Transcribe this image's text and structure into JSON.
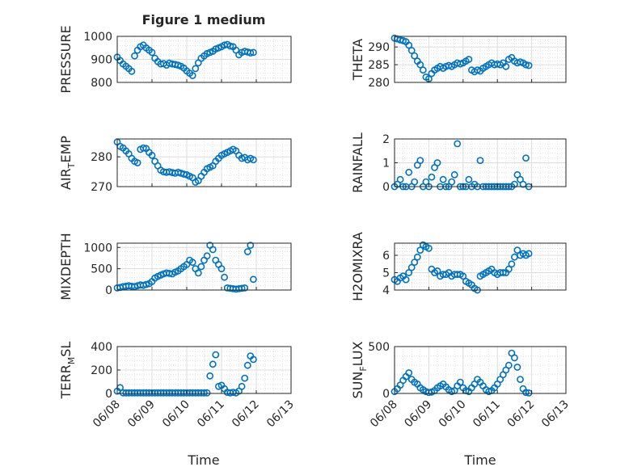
{
  "figure": {
    "title": "Figure 1 medium",
    "xlabel": "Time"
  },
  "colors": {
    "marker": "#0072BD",
    "axis": "#262626",
    "grid": "#dcdcdc"
  },
  "chart_data": [
    {
      "id": "pressure",
      "type": "scatter",
      "ylabel": {
        "main": "PRESSURE",
        "sub": ""
      },
      "ylim": [
        800,
        1000
      ],
      "yticks": [
        800,
        900,
        1000
      ],
      "yticklabels": [
        "800",
        "900",
        "1000"
      ],
      "x": [
        "06/08 00:00",
        "06/08 02:00",
        "06/08 04:00",
        "06/08 06:00",
        "06/08 08:00",
        "06/08 10:00",
        "06/08 12:00",
        "06/08 14:00",
        "06/08 16:00",
        "06/08 18:00",
        "06/08 20:00",
        "06/08 22:00",
        "06/09 00:00",
        "06/09 02:00",
        "06/09 04:00",
        "06/09 06:00",
        "06/09 08:00",
        "06/09 10:00",
        "06/09 12:00",
        "06/09 14:00",
        "06/09 16:00",
        "06/09 18:00",
        "06/09 20:00",
        "06/09 22:00",
        "06/10 00:00",
        "06/10 02:00",
        "06/10 04:00",
        "06/10 06:00",
        "06/10 08:00",
        "06/10 10:00",
        "06/10 12:00",
        "06/10 14:00",
        "06/10 16:00",
        "06/10 18:00",
        "06/10 20:00",
        "06/10 22:00",
        "06/11 00:00",
        "06/11 02:00",
        "06/11 04:00",
        "06/11 06:00",
        "06/11 08:00",
        "06/11 10:00",
        "06/11 12:00",
        "06/11 14:00",
        "06/11 16:00",
        "06/11 18:00",
        "06/11 20:00",
        "06/11 22:00"
      ],
      "y": [
        910,
        895,
        880,
        870,
        860,
        848,
        915,
        940,
        955,
        962,
        950,
        940,
        930,
        905,
        890,
        880,
        882,
        875,
        884,
        880,
        878,
        875,
        870,
        862,
        850,
        840,
        830,
        860,
        885,
        905,
        915,
        925,
        930,
        935,
        945,
        950,
        955,
        962,
        965,
        958,
        955,
        940,
        920,
        930,
        935,
        932,
        928,
        930
      ]
    },
    {
      "id": "theta",
      "type": "scatter",
      "ylabel": {
        "main": "THETA",
        "sub": ""
      },
      "ylim": [
        280,
        293
      ],
      "yticks": [
        280,
        285,
        290
      ],
      "yticklabels": [
        "280",
        "285",
        "290"
      ],
      "x": [
        "06/08 00:00",
        "06/08 02:00",
        "06/08 04:00",
        "06/08 06:00",
        "06/08 08:00",
        "06/08 10:00",
        "06/08 12:00",
        "06/08 14:00",
        "06/08 16:00",
        "06/08 18:00",
        "06/08 20:00",
        "06/08 22:00",
        "06/09 00:00",
        "06/09 02:00",
        "06/09 04:00",
        "06/09 06:00",
        "06/09 08:00",
        "06/09 10:00",
        "06/09 12:00",
        "06/09 14:00",
        "06/09 16:00",
        "06/09 18:00",
        "06/09 20:00",
        "06/09 22:00",
        "06/10 00:00",
        "06/10 02:00",
        "06/10 04:00",
        "06/10 06:00",
        "06/10 08:00",
        "06/10 10:00",
        "06/10 12:00",
        "06/10 14:00",
        "06/10 16:00",
        "06/10 18:00",
        "06/10 20:00",
        "06/10 22:00",
        "06/11 00:00",
        "06/11 02:00",
        "06/11 04:00",
        "06/11 06:00",
        "06/11 08:00",
        "06/11 10:00",
        "06/11 12:00",
        "06/11 14:00",
        "06/11 16:00",
        "06/11 18:00",
        "06/11 20:00",
        "06/11 22:00"
      ],
      "y": [
        292.5,
        292.3,
        292.0,
        291.8,
        291.5,
        290.5,
        289.0,
        287.5,
        286.0,
        285.0,
        283.5,
        281.5,
        281.0,
        282.5,
        283.5,
        284.0,
        284.5,
        284.0,
        284.5,
        284.8,
        284.5,
        285.0,
        285.5,
        285.2,
        285.5,
        286.0,
        286.5,
        283.5,
        283.0,
        283.5,
        283.2,
        284.0,
        284.5,
        285.0,
        285.5,
        285.0,
        285.2,
        285.0,
        285.5,
        284.5,
        286.5,
        287.0,
        286.0,
        285.5,
        285.8,
        285.5,
        285.0,
        284.8
      ]
    },
    {
      "id": "air_temp",
      "type": "scatter",
      "ylabel": {
        "main": "AIR",
        "sub": "T",
        "rest": "EMP"
      },
      "ylim": [
        270,
        286
      ],
      "yticks": [
        270,
        280
      ],
      "yticklabels": [
        "270",
        "280"
      ],
      "x": [
        "06/08 00:00",
        "06/08 02:00",
        "06/08 04:00",
        "06/08 06:00",
        "06/08 08:00",
        "06/08 10:00",
        "06/08 12:00",
        "06/08 14:00",
        "06/08 16:00",
        "06/08 18:00",
        "06/08 20:00",
        "06/08 22:00",
        "06/09 00:00",
        "06/09 02:00",
        "06/09 04:00",
        "06/09 06:00",
        "06/09 08:00",
        "06/09 10:00",
        "06/09 12:00",
        "06/09 14:00",
        "06/09 16:00",
        "06/09 18:00",
        "06/09 20:00",
        "06/09 22:00",
        "06/10 00:00",
        "06/10 02:00",
        "06/10 04:00",
        "06/10 06:00",
        "06/10 08:00",
        "06/10 10:00",
        "06/10 12:00",
        "06/10 14:00",
        "06/10 16:00",
        "06/10 18:00",
        "06/10 20:00",
        "06/10 22:00",
        "06/11 00:00",
        "06/11 02:00",
        "06/11 04:00",
        "06/11 06:00",
        "06/11 08:00",
        "06/11 10:00",
        "06/11 12:00",
        "06/11 14:00",
        "06/11 16:00",
        "06/11 18:00",
        "06/11 20:00",
        "06/11 22:00"
      ],
      "y": [
        285.0,
        283.5,
        283.0,
        282.0,
        281.0,
        279.5,
        278.5,
        278.0,
        282.5,
        283.0,
        282.8,
        281.5,
        280.5,
        278.5,
        277.0,
        275.5,
        275.0,
        274.8,
        275.0,
        274.7,
        274.5,
        274.8,
        274.5,
        274.2,
        274.0,
        273.5,
        273.0,
        271.5,
        272.0,
        273.5,
        274.8,
        276.0,
        276.5,
        277.0,
        278.5,
        279.5,
        280.5,
        281.0,
        281.5,
        282.0,
        282.5,
        282.0,
        280.5,
        279.5,
        279.8,
        279.0,
        279.5,
        279.0
      ]
    },
    {
      "id": "rainfall",
      "type": "scatter",
      "ylabel": {
        "main": "RAINFALL",
        "sub": ""
      },
      "ylim": [
        0,
        2
      ],
      "yticks": [
        0,
        1,
        2
      ],
      "yticklabels": [
        "0",
        "1",
        "2"
      ],
      "x": [
        "06/08 00:00",
        "06/08 02:00",
        "06/08 04:00",
        "06/08 06:00",
        "06/08 08:00",
        "06/08 10:00",
        "06/08 12:00",
        "06/08 14:00",
        "06/08 16:00",
        "06/08 18:00",
        "06/08 20:00",
        "06/08 22:00",
        "06/09 00:00",
        "06/09 02:00",
        "06/09 04:00",
        "06/09 06:00",
        "06/09 08:00",
        "06/09 10:00",
        "06/09 12:00",
        "06/09 14:00",
        "06/09 16:00",
        "06/09 18:00",
        "06/09 20:00",
        "06/09 22:00",
        "06/10 00:00",
        "06/10 02:00",
        "06/10 04:00",
        "06/10 06:00",
        "06/10 08:00",
        "06/10 10:00",
        "06/10 12:00",
        "06/10 14:00",
        "06/10 16:00",
        "06/10 18:00",
        "06/10 20:00",
        "06/10 22:00",
        "06/11 00:00",
        "06/11 02:00",
        "06/11 04:00",
        "06/11 06:00",
        "06/11 08:00",
        "06/11 10:00",
        "06/11 12:00",
        "06/11 14:00",
        "06/11 16:00",
        "06/11 18:00",
        "06/11 20:00",
        "06/11 22:00"
      ],
      "y": [
        0.0,
        0.1,
        0.3,
        0.0,
        0.0,
        0.6,
        0.0,
        0.2,
        0.9,
        1.1,
        0.0,
        0.2,
        0.0,
        0.4,
        0.8,
        1.0,
        0.0,
        0.3,
        0.0,
        0.0,
        0.2,
        0.5,
        1.8,
        0.0,
        0.0,
        0.0,
        0.3,
        0.0,
        0.1,
        0.0,
        1.1,
        0.0,
        0.0,
        0.0,
        0.0,
        0.0,
        0.0,
        0.0,
        0.0,
        0.0,
        0.0,
        0.0,
        0.1,
        0.5,
        0.3,
        0.1,
        1.2,
        0.0
      ]
    },
    {
      "id": "mixdepth",
      "type": "scatter",
      "ylabel": {
        "main": "MIXDEPTH",
        "sub": ""
      },
      "ylim": [
        0,
        1100
      ],
      "yticks": [
        0,
        500,
        1000
      ],
      "yticklabels": [
        "0",
        "500",
        "1000"
      ],
      "x": [
        "06/08 00:00",
        "06/08 02:00",
        "06/08 04:00",
        "06/08 06:00",
        "06/08 08:00",
        "06/08 10:00",
        "06/08 12:00",
        "06/08 14:00",
        "06/08 16:00",
        "06/08 18:00",
        "06/08 20:00",
        "06/08 22:00",
        "06/09 00:00",
        "06/09 02:00",
        "06/09 04:00",
        "06/09 06:00",
        "06/09 08:00",
        "06/09 10:00",
        "06/09 12:00",
        "06/09 14:00",
        "06/09 16:00",
        "06/09 18:00",
        "06/09 20:00",
        "06/09 22:00",
        "06/10 00:00",
        "06/10 02:00",
        "06/10 04:00",
        "06/10 06:00",
        "06/10 08:00",
        "06/10 10:00",
        "06/10 12:00",
        "06/10 14:00",
        "06/10 16:00",
        "06/10 18:00",
        "06/10 20:00",
        "06/10 22:00",
        "06/11 00:00",
        "06/11 02:00",
        "06/11 04:00",
        "06/11 06:00",
        "06/11 08:00",
        "06/11 10:00",
        "06/11 12:00",
        "06/11 14:00",
        "06/11 16:00",
        "06/11 18:00",
        "06/11 20:00",
        "06/11 22:00"
      ],
      "y": [
        50,
        60,
        80,
        90,
        100,
        90,
        80,
        100,
        120,
        110,
        130,
        150,
        200,
        280,
        320,
        350,
        380,
        400,
        390,
        380,
        420,
        450,
        500,
        550,
        600,
        700,
        650,
        500,
        400,
        550,
        700,
        800,
        1050,
        950,
        700,
        600,
        500,
        300,
        50,
        40,
        30,
        20,
        30,
        40,
        50,
        900,
        1050,
        250
      ]
    },
    {
      "id": "h2omixra",
      "type": "scatter",
      "ylabel": {
        "main": "H2OMIXRA",
        "sub": ""
      },
      "ylim": [
        4,
        6.7
      ],
      "yticks": [
        4,
        5,
        6
      ],
      "yticklabels": [
        "4",
        "5",
        "6"
      ],
      "x": [
        "06/08 00:00",
        "06/08 02:00",
        "06/08 04:00",
        "06/08 06:00",
        "06/08 08:00",
        "06/08 10:00",
        "06/08 12:00",
        "06/08 14:00",
        "06/08 16:00",
        "06/08 18:00",
        "06/08 20:00",
        "06/08 22:00",
        "06/09 00:00",
        "06/09 02:00",
        "06/09 04:00",
        "06/09 06:00",
        "06/09 08:00",
        "06/09 10:00",
        "06/09 12:00",
        "06/09 14:00",
        "06/09 16:00",
        "06/09 18:00",
        "06/09 20:00",
        "06/09 22:00",
        "06/10 00:00",
        "06/10 02:00",
        "06/10 04:00",
        "06/10 06:00",
        "06/10 08:00",
        "06/10 10:00",
        "06/10 12:00",
        "06/10 14:00",
        "06/10 16:00",
        "06/10 18:00",
        "06/10 20:00",
        "06/10 22:00",
        "06/11 00:00",
        "06/11 02:00",
        "06/11 04:00",
        "06/11 06:00",
        "06/11 08:00",
        "06/11 10:00",
        "06/11 12:00",
        "06/11 14:00",
        "06/11 16:00",
        "06/11 18:00",
        "06/11 20:00",
        "06/11 22:00"
      ],
      "y": [
        4.6,
        4.5,
        4.7,
        4.8,
        4.6,
        5.0,
        5.3,
        5.6,
        5.9,
        6.3,
        6.6,
        6.5,
        6.4,
        5.2,
        5.0,
        5.1,
        4.8,
        4.9,
        4.9,
        5.0,
        4.8,
        4.9,
        4.9,
        4.9,
        4.8,
        4.5,
        4.4,
        4.3,
        4.1,
        4.0,
        4.8,
        4.9,
        5.0,
        5.1,
        5.2,
        5.0,
        4.9,
        5.0,
        5.0,
        5.0,
        5.2,
        5.5,
        5.9,
        6.3,
        6.0,
        6.1,
        6.0,
        6.1
      ]
    },
    {
      "id": "terr_msl",
      "type": "scatter",
      "ylabel": {
        "main": "TERR",
        "sub": "M",
        "rest": "SL"
      },
      "ylim": [
        0,
        400
      ],
      "yticks": [
        0,
        200,
        400
      ],
      "yticklabels": [
        "0",
        "200",
        "400"
      ],
      "x": [
        "06/08 00:00",
        "06/08 02:00",
        "06/08 04:00",
        "06/08 06:00",
        "06/08 08:00",
        "06/08 10:00",
        "06/08 12:00",
        "06/08 14:00",
        "06/08 16:00",
        "06/08 18:00",
        "06/08 20:00",
        "06/08 22:00",
        "06/09 00:00",
        "06/09 02:00",
        "06/09 04:00",
        "06/09 06:00",
        "06/09 08:00",
        "06/09 10:00",
        "06/09 12:00",
        "06/09 14:00",
        "06/09 16:00",
        "06/09 18:00",
        "06/09 20:00",
        "06/09 22:00",
        "06/10 00:00",
        "06/10 02:00",
        "06/10 04:00",
        "06/10 06:00",
        "06/10 08:00",
        "06/10 10:00",
        "06/10 12:00",
        "06/10 14:00",
        "06/10 16:00",
        "06/10 18:00",
        "06/10 20:00",
        "06/10 22:00",
        "06/11 00:00",
        "06/11 02:00",
        "06/11 04:00",
        "06/11 06:00",
        "06/11 08:00",
        "06/11 10:00",
        "06/11 12:00",
        "06/11 14:00",
        "06/11 16:00",
        "06/11 18:00",
        "06/11 20:00",
        "06/11 22:00"
      ],
      "y": [
        20,
        50,
        5,
        5,
        5,
        5,
        5,
        5,
        5,
        5,
        5,
        5,
        5,
        5,
        5,
        5,
        5,
        5,
        5,
        5,
        5,
        5,
        5,
        5,
        5,
        5,
        5,
        5,
        5,
        5,
        5,
        5,
        150,
        250,
        330,
        60,
        70,
        40,
        10,
        5,
        10,
        5,
        20,
        60,
        130,
        240,
        320,
        290
      ]
    },
    {
      "id": "sun_flux",
      "type": "scatter",
      "ylabel": {
        "main": "SUN",
        "sub": "F",
        "rest": "LUX"
      },
      "ylim": [
        0,
        500
      ],
      "yticks": [
        0,
        500
      ],
      "yticklabels": [
        "0",
        "500"
      ],
      "x": [
        "06/08 00:00",
        "06/08 02:00",
        "06/08 04:00",
        "06/08 06:00",
        "06/08 08:00",
        "06/08 10:00",
        "06/08 12:00",
        "06/08 14:00",
        "06/08 16:00",
        "06/08 18:00",
        "06/08 20:00",
        "06/08 22:00",
        "06/09 00:00",
        "06/09 02:00",
        "06/09 04:00",
        "06/09 06:00",
        "06/09 08:00",
        "06/09 10:00",
        "06/09 12:00",
        "06/09 14:00",
        "06/09 16:00",
        "06/09 18:00",
        "06/09 20:00",
        "06/09 22:00",
        "06/10 00:00",
        "06/10 02:00",
        "06/10 04:00",
        "06/10 06:00",
        "06/10 08:00",
        "06/10 10:00",
        "06/10 12:00",
        "06/10 14:00",
        "06/10 16:00",
        "06/10 18:00",
        "06/10 20:00",
        "06/10 22:00",
        "06/11 00:00",
        "06/11 02:00",
        "06/11 04:00",
        "06/11 06:00",
        "06/11 08:00",
        "06/11 10:00",
        "06/11 12:00",
        "06/11 14:00",
        "06/11 16:00",
        "06/11 18:00",
        "06/11 20:00",
        "06/11 22:00"
      ],
      "y": [
        20,
        50,
        90,
        140,
        180,
        220,
        150,
        120,
        100,
        60,
        40,
        20,
        10,
        15,
        30,
        60,
        80,
        100,
        70,
        40,
        20,
        30,
        80,
        120,
        60,
        30,
        20,
        60,
        100,
        150,
        120,
        80,
        40,
        20,
        30,
        60,
        100,
        150,
        200,
        250,
        300,
        430,
        380,
        280,
        150,
        50,
        10,
        5
      ]
    }
  ],
  "xaxis": {
    "tick_values": [
      "06/08",
      "06/09",
      "06/10",
      "06/11",
      "06/12",
      "06/13"
    ],
    "range": [
      "06/08 00:00",
      "06/13 00:00"
    ]
  }
}
